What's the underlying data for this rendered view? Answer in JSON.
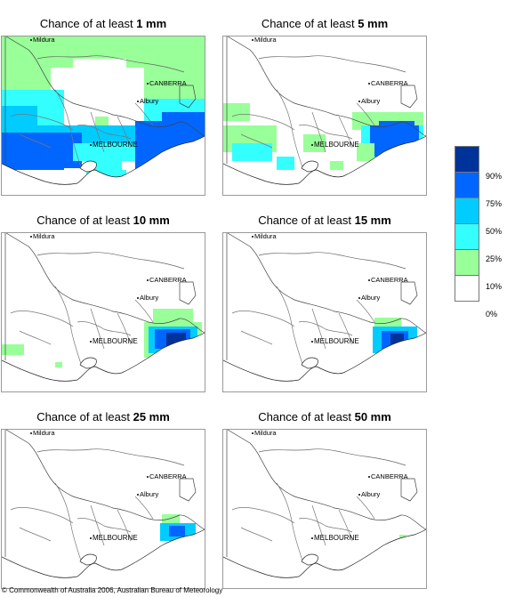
{
  "panels": [
    {
      "title_prefix": "Chance of at least ",
      "title_value": "1 mm"
    },
    {
      "title_prefix": "Chance of at least ",
      "title_value": "5 mm"
    },
    {
      "title_prefix": "Chance of at least ",
      "title_value": "10 mm"
    },
    {
      "title_prefix": "Chance of at least ",
      "title_value": "15 mm"
    },
    {
      "title_prefix": "Chance of at least ",
      "title_value": "25 mm"
    },
    {
      "title_prefix": "Chance of at least ",
      "title_value": "50 mm"
    }
  ],
  "places": {
    "mildura": "Mildura",
    "canberra": "CANBERRA",
    "albury": "Albury",
    "melbourne": "MELBOURNE"
  },
  "legend": {
    "labels": [
      "90%",
      "75%",
      "50%",
      "25%",
      "10%",
      "0%"
    ],
    "colors": [
      "#003399",
      "#0066ff",
      "#00ccff",
      "#33ffff",
      "#99ff99",
      "#ffffff"
    ]
  },
  "copyright": "© Commonwealth of Australia 2006, Australian Bureau of Meteorology"
}
